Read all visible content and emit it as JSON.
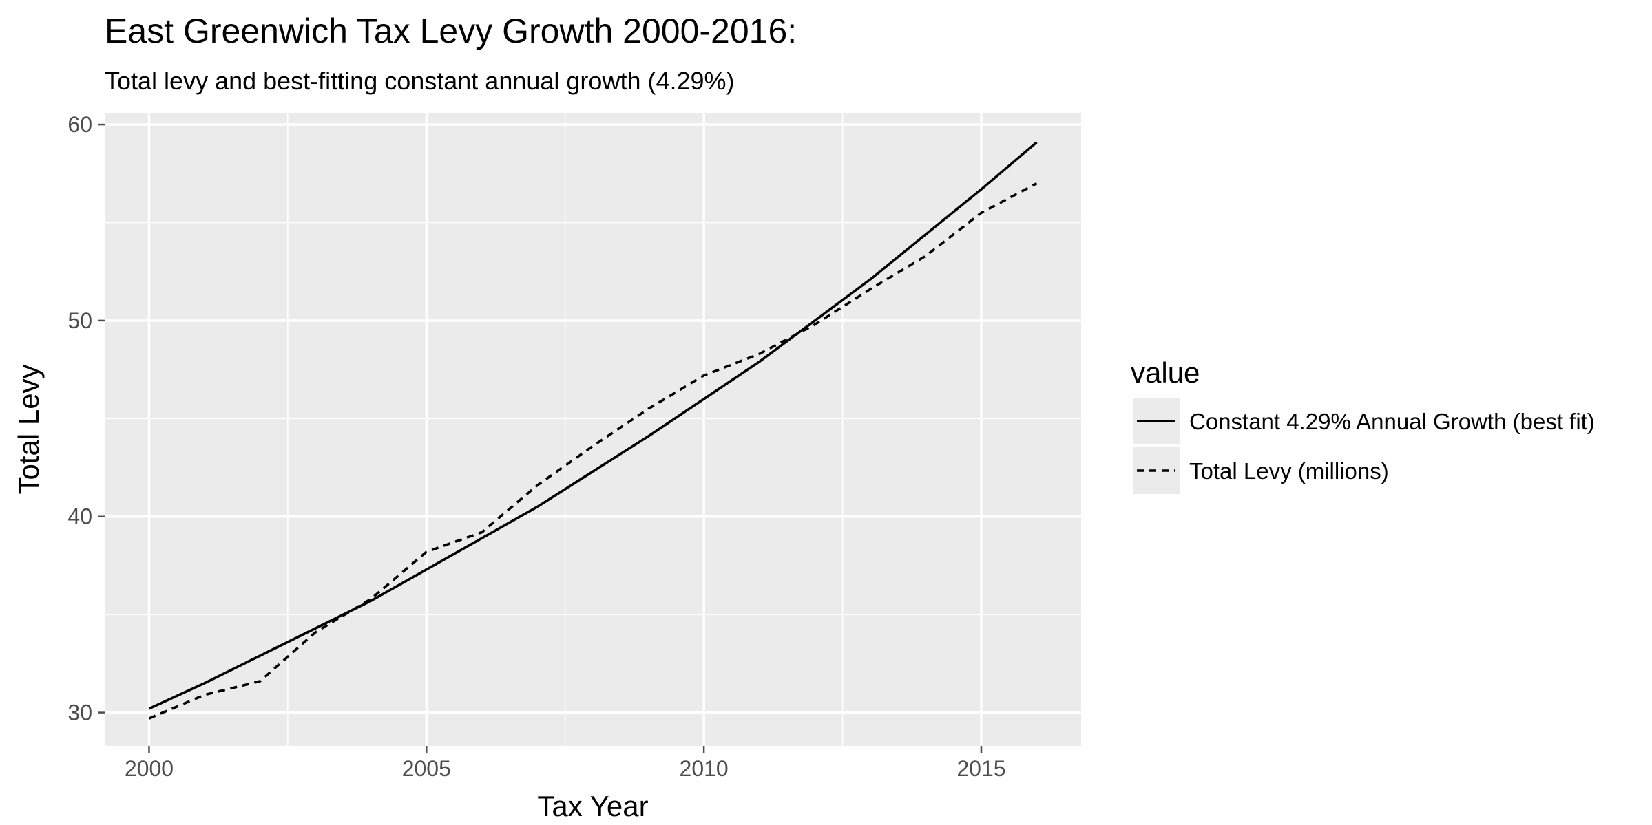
{
  "chart_data": {
    "type": "line",
    "title": "East Greenwich Tax Levy Growth 2000-2016:",
    "subtitle": "Total levy and best-fitting constant annual growth (4.29%)",
    "xlabel": "Tax Year",
    "ylabel": "Total Levy",
    "xlim": [
      1999.2,
      2016.8
    ],
    "ylim": [
      28.3,
      60.6
    ],
    "x_ticks": [
      2000,
      2005,
      2010,
      2015
    ],
    "y_ticks": [
      30,
      40,
      50,
      60
    ],
    "grid": true,
    "legend_position": "right",
    "legend_title": "value",
    "x": [
      2000,
      2001,
      2002,
      2003,
      2004,
      2005,
      2006,
      2007,
      2008,
      2009,
      2010,
      2011,
      2012,
      2013,
      2014,
      2015,
      2016
    ],
    "series": [
      {
        "name": "Constant 4.29% Annual Growth (best fit)",
        "line_style": "solid",
        "color": "#000000",
        "values": [
          30.2,
          31.5,
          32.9,
          34.3,
          35.7,
          37.3,
          38.9,
          40.5,
          42.3,
          44.1,
          46.0,
          47.9,
          50.0,
          52.1,
          54.4,
          56.7,
          59.1
        ]
      },
      {
        "name": "Total Levy (millions)",
        "line_style": "dashed",
        "color": "#000000",
        "values": [
          29.7,
          30.9,
          31.6,
          34.1,
          35.8,
          38.2,
          39.2,
          41.6,
          43.6,
          45.5,
          47.2,
          48.3,
          49.8,
          51.6,
          53.3,
          55.5,
          57.0
        ]
      }
    ]
  },
  "colors": {
    "panel_background": "#ebebeb",
    "grid_major": "#ffffff",
    "tick_color": "#4d4d4d"
  }
}
